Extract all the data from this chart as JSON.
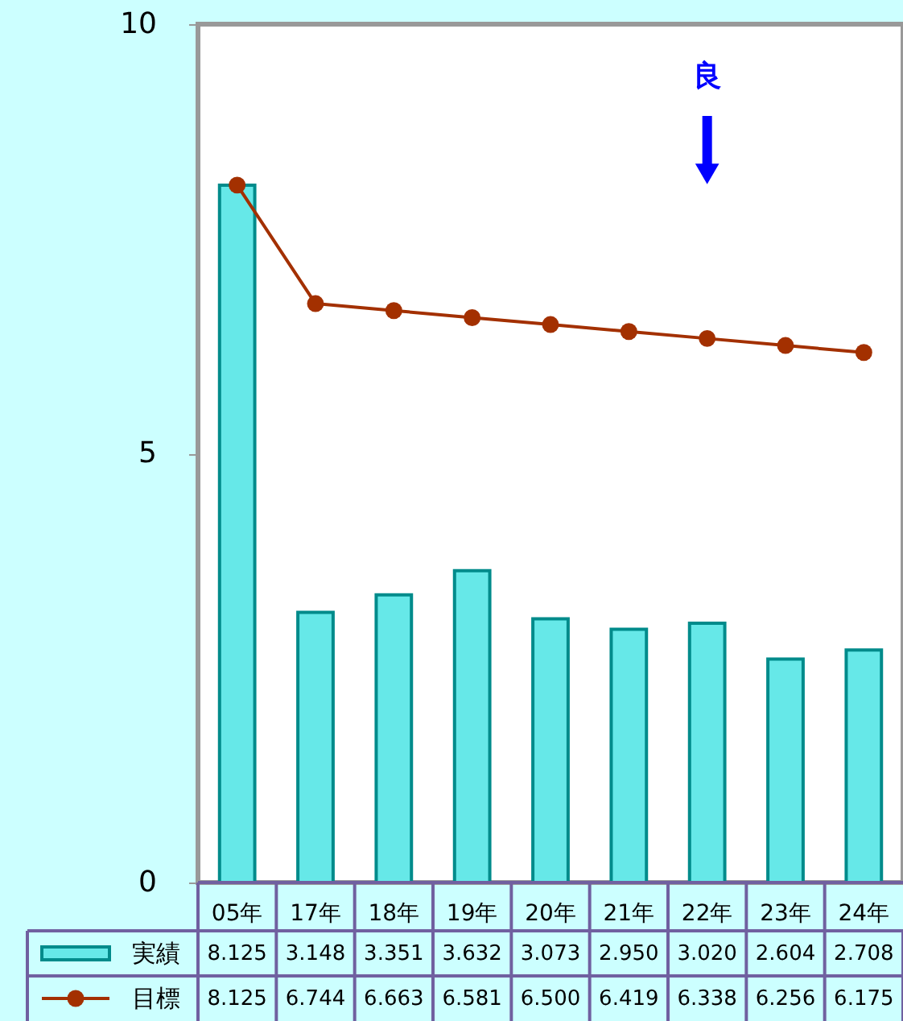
{
  "chart_data": {
    "type": "bar",
    "categories": [
      "05年",
      "17年",
      "18年",
      "19年",
      "20年",
      "21年",
      "22年",
      "23年",
      "24年"
    ],
    "series": [
      {
        "name": "実績",
        "color": "#66e8e8",
        "values": [
          8.125,
          3.148,
          3.351,
          3.632,
          3.073,
          2.95,
          3.02,
          2.604,
          2.708
        ],
        "value_labels": [
          "8.125",
          "3.148",
          "3.351",
          "3.632",
          "3.073",
          "2.950",
          "3.020",
          "2.604",
          "2.708"
        ]
      },
      {
        "name": "目標",
        "type": "line",
        "color": "#a33000",
        "values": [
          8.125,
          6.744,
          6.663,
          6.581,
          6.5,
          6.419,
          6.338,
          6.256,
          6.175
        ],
        "value_labels": [
          "8.125",
          "6.744",
          "6.663",
          "6.581",
          "6.500",
          "6.419",
          "6.338",
          "6.256",
          "6.175"
        ]
      }
    ],
    "ylim": [
      0,
      10
    ],
    "yticks": [
      0,
      5,
      10
    ],
    "marker": "circle",
    "line_style": "solid",
    "legend": "bottom left",
    "annotations": [
      "良"
    ]
  }
}
